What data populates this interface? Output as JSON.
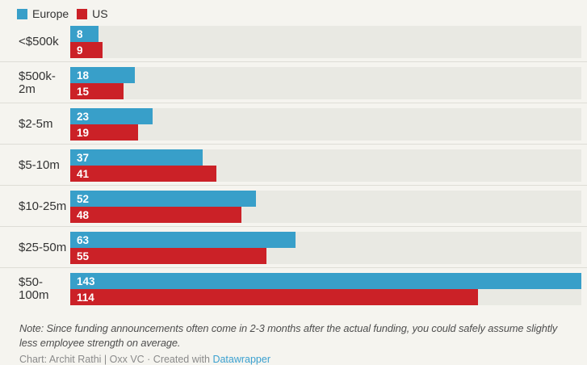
{
  "chart_data": {
    "type": "bar",
    "orientation": "horizontal",
    "title": "",
    "categories": [
      "<$500k",
      "$500k-2m",
      "$2-5m",
      "$5-10m",
      "$10-25m",
      "$25-50m",
      "$50-100m"
    ],
    "series": [
      {
        "name": "Europe",
        "color": "#389fc9",
        "values": [
          8,
          18,
          23,
          37,
          52,
          63,
          143
        ]
      },
      {
        "name": "US",
        "color": "#cb2127",
        "values": [
          9,
          15,
          19,
          41,
          48,
          55,
          114
        ]
      }
    ],
    "xlim": [
      0,
      143
    ],
    "grid": false,
    "legend_position": "top-left",
    "value_labels": "inside-start"
  },
  "footer": {
    "note": "Note: Since funding announcements often come in 2-3 months after the actual funding, you could safely assume slightly less employee strength on average.",
    "credit_prefix": "Chart: Archit Rathi | Oxx VC · Created with ",
    "credit_link": "Datawrapper"
  },
  "colors": {
    "background": "#f5f4ef",
    "row_track": "#e9e9e3",
    "separator": "#deddd6",
    "europe": "#389fc9",
    "us": "#cb2127",
    "label_text": "#333333",
    "value_text": "#ffffff",
    "note_text": "#4e4e4e",
    "credit_text": "#8a8a8a",
    "link": "#3aa0d0"
  }
}
